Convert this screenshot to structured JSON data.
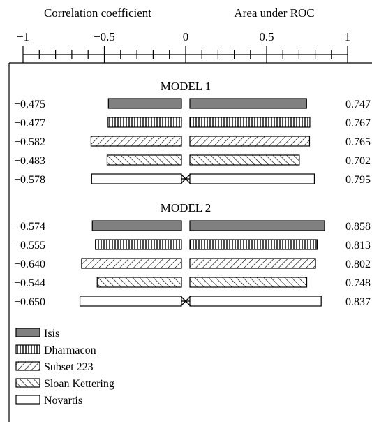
{
  "chart_data": {
    "type": "bar",
    "orientation": "horizontal-diverging",
    "axis": {
      "left_title": "Correlation coefficient",
      "right_title": "Area under ROC",
      "ticks": [
        {
          "value": -1,
          "label": "−1"
        },
        {
          "value": -0.5,
          "label": "−0.5"
        },
        {
          "value": 0,
          "label": "0"
        },
        {
          "value": 0.5,
          "label": "0.5"
        },
        {
          "value": 1,
          "label": "1"
        }
      ],
      "range": [
        -1,
        1
      ],
      "minor_tick_step": 0.1
    },
    "series": [
      {
        "name": "Isis",
        "color": "#808080",
        "pattern": "solid-gray"
      },
      {
        "name": "Dharmacon",
        "color": "#000000",
        "pattern": "vertical-lines"
      },
      {
        "name": "Subset 223",
        "color": "#000000",
        "pattern": "back-diagonal"
      },
      {
        "name": "Sloan Kettering",
        "color": "#000000",
        "pattern": "forward-diagonal"
      },
      {
        "name": "Novartis",
        "color": "#ffffff",
        "pattern": "empty"
      }
    ],
    "models": [
      {
        "title": "MODEL 1",
        "correlation": [
          -0.475,
          -0.477,
          -0.582,
          -0.483,
          -0.578
        ],
        "correlation_labels": [
          "−0.475",
          "−0.477",
          "−0.582",
          "−0.483",
          "−0.578"
        ],
        "auc": [
          0.747,
          0.767,
          0.765,
          0.702,
          0.795
        ],
        "auc_labels": [
          "0.747",
          "0.767",
          "0.765",
          "0.702",
          "0.795"
        ]
      },
      {
        "title": "MODEL 2",
        "correlation": [
          -0.574,
          -0.555,
          -0.64,
          -0.544,
          -0.65
        ],
        "correlation_labels": [
          "−0.574",
          "−0.555",
          "−0.640",
          "−0.544",
          "−0.650"
        ],
        "auc": [
          0.858,
          0.813,
          0.802,
          0.748,
          0.837
        ],
        "auc_labels": [
          "0.858",
          "0.813",
          "0.802",
          "0.748",
          "0.837"
        ]
      }
    ],
    "legend": {
      "placement": "bottom-left",
      "entries": [
        "Isis",
        "Dharmacon",
        "Subset 223",
        "Sloan Kettering",
        "Novartis"
      ]
    },
    "grid": false
  }
}
